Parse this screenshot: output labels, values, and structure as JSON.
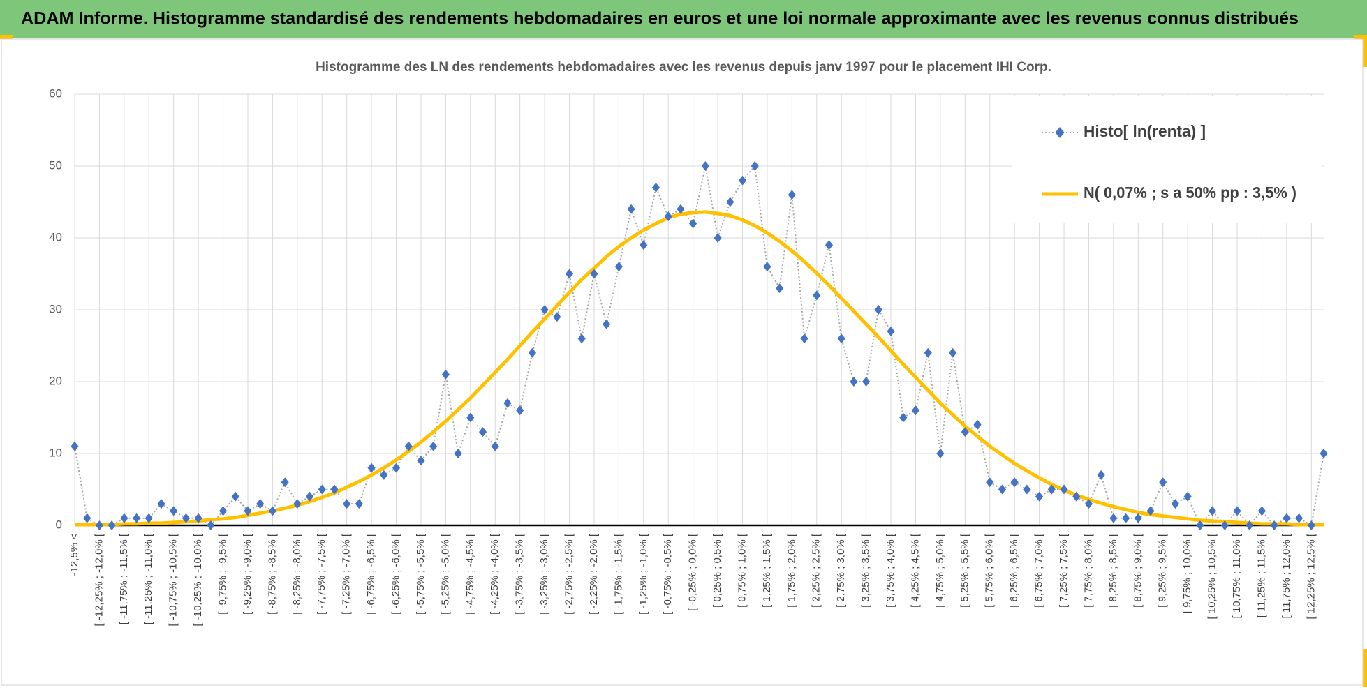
{
  "header": {
    "title": "ADAM Informe. Histogramme standardisé des rendements hebdomadaires en euros et une loi normale approximante avec les revenus connus distribués"
  },
  "chart_data": {
    "type": "line",
    "title": "Histogramme des LN des rendements hebdomadaires avec les revenus depuis janv 1997 pour le placement IHI Corp.",
    "categories": [
      "-12,5% <",
      null,
      "[ -12,25% ; -12,0% [",
      null,
      "[ -11,75% ; -11,5% [",
      null,
      "[ -11,25% ; -11,0% [",
      null,
      "[ -10,75% ; -10,5% [",
      null,
      "[ -10,25% ; -10,0% [",
      null,
      "[ -9,75% ; -9,5% [",
      null,
      "[ -9,25% ; -9,0% [",
      null,
      "[ -8,75% ; -8,5% [",
      null,
      "[ -8,25% ; -8,0% [",
      null,
      "[ -7,75% ; -7,5% [",
      null,
      "[ -7,25% ; -7,0% [",
      null,
      "[ -6,75% ; -6,5% [",
      null,
      "[ -6,25% ; -6,0% [",
      null,
      "[ -5,75% ; -5,5% [",
      null,
      "[ -5,25% ; -5,0% [",
      null,
      "[ -4,75% ; -4,5% [",
      null,
      "[ -4,25% ; -4,0% [",
      null,
      "[ -3,75% ; -3,5% [",
      null,
      "[ -3,25% ; -3,0% [",
      null,
      "[ -2,75% ; -2,5% [",
      null,
      "[ -2,25% ; -2,0% [",
      null,
      "[ -1,75% ; -1,5% [",
      null,
      "[ -1,25% ; -1,0% [",
      null,
      "[ -0,75% ; -0,5% [",
      null,
      "[ -0,25% ; 0,0% [",
      null,
      "[ 0,25% ; 0,5% [",
      null,
      "[ 0,75% ; 1,0% [",
      null,
      "[ 1,25% ; 1,5% [",
      null,
      "[ 1,75% ; 2,0% [",
      null,
      "[ 2,25% ; 2,5% [",
      null,
      "[ 2,75% ; 3,0% [",
      null,
      "[ 3,25% ; 3,5% [",
      null,
      "[ 3,75% ; 4,0% [",
      null,
      "[ 4,25% ; 4,5% [",
      null,
      "[ 4,75% ; 5,0% [",
      null,
      "[ 5,25% ; 5,5% [",
      null,
      "[ 5,75% ; 6,0% [",
      null,
      "[ 6,25% ; 6,5% [",
      null,
      "[ 6,75% ; 7,0% [",
      null,
      "[ 7,25% ; 7,5% [",
      null,
      "[ 7,75% ; 8,0% [",
      null,
      "[ 8,25% ; 8,5% [",
      null,
      "[ 8,75% ; 9,0% [",
      null,
      "[ 9,25% ; 9,5% [",
      null,
      "[ 9,75% ; 10,0% [",
      null,
      "[ 10,25% ; 10,5% [",
      null,
      "[ 10,75% ; 11,0% [",
      null,
      "[ 11,25% ; 11,5% [",
      null,
      "[ 11,75% ; 12,0% [",
      null,
      "[ 12,25% ; 12,5% [",
      null
    ],
    "series": [
      {
        "name": "Histo[ ln(renta) ]",
        "color": "#4472c4",
        "line_color": "#a6a6a6",
        "marker": "diamond",
        "line_style": "dotted",
        "values": [
          11,
          1,
          0,
          0,
          1,
          1,
          1,
          3,
          2,
          1,
          1,
          0,
          2,
          4,
          2,
          3,
          2,
          6,
          3,
          4,
          5,
          5,
          3,
          3,
          8,
          7,
          8,
          11,
          9,
          11,
          21,
          10,
          15,
          13,
          11,
          17,
          16,
          24,
          30,
          29,
          35,
          26,
          35,
          28,
          36,
          44,
          39,
          47,
          43,
          44,
          42,
          50,
          40,
          45,
          48,
          50,
          36,
          33,
          46,
          26,
          32,
          39,
          26,
          20,
          20,
          30,
          27,
          15,
          16,
          24,
          10,
          24,
          13,
          14,
          6,
          5,
          6,
          5,
          4,
          5,
          5,
          4,
          3,
          7,
          1,
          1,
          1,
          2,
          6,
          3,
          4,
          0,
          2,
          0,
          2,
          0,
          2,
          0,
          1,
          1,
          0,
          10
        ]
      },
      {
        "name": "N( 0,07% ; s a 50% pp : 3,5% )",
        "color": "#ffc000",
        "marker": "none",
        "line_style": "solid",
        "values": [
          0.1,
          0.1,
          0.1,
          0.1,
          0.2,
          0.2,
          0.3,
          0.3,
          0.4,
          0.5,
          0.6,
          0.8,
          0.9,
          1.1,
          1.4,
          1.7,
          2.0,
          2.4,
          2.8,
          3.3,
          3.9,
          4.5,
          5.3,
          6.1,
          7.0,
          8.0,
          9.1,
          10.3,
          11.6,
          13.0,
          14.5,
          16.1,
          17.7,
          19.5,
          21.3,
          23.1,
          25.0,
          26.9,
          28.7,
          30.6,
          32.4,
          34.2,
          35.8,
          37.4,
          38.8,
          40.0,
          41.1,
          42.0,
          42.8,
          43.3,
          43.5,
          43.6,
          43.4,
          43.1,
          42.5,
          41.7,
          40.7,
          39.5,
          38.2,
          36.7,
          35.1,
          33.4,
          31.6,
          29.8,
          28.0,
          26.2,
          24.3,
          22.4,
          20.6,
          18.8,
          17.0,
          15.4,
          13.8,
          12.4,
          11.0,
          9.8,
          8.6,
          7.6,
          6.6,
          5.7,
          4.9,
          4.2,
          3.6,
          3.1,
          2.6,
          2.2,
          1.8,
          1.5,
          1.3,
          1.1,
          0.9,
          0.7,
          0.6,
          0.5,
          0.4,
          0.3,
          0.2,
          0.2,
          0.2,
          0.1,
          0.1,
          0.1
        ]
      }
    ],
    "ylim": [
      0,
      60
    ],
    "yticks": [
      0,
      10,
      20,
      30,
      40,
      50,
      60
    ],
    "grid": true,
    "legend": "top-right"
  }
}
